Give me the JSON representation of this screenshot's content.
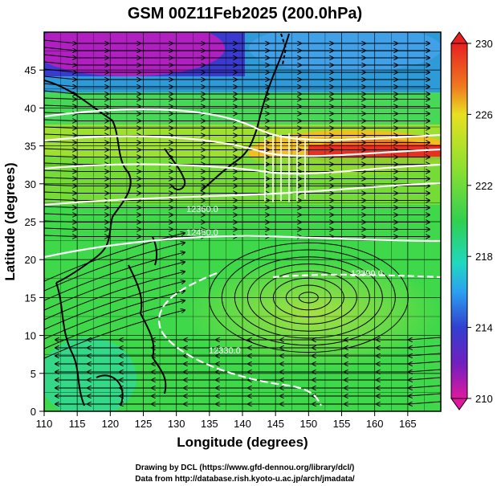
{
  "title": "GSM 00Z11Feb2025 (200.0hPa)",
  "x_axis": {
    "label": "Longitude (degrees)",
    "ticks": [
      "110",
      "115",
      "120",
      "125",
      "130",
      "135",
      "140",
      "145",
      "150",
      "155",
      "160",
      "165"
    ],
    "range": [
      110,
      170
    ]
  },
  "y_axis": {
    "label": "Latitude  (degrees)",
    "ticks": [
      "0",
      "5",
      "10",
      "15",
      "20",
      "25",
      "30",
      "35",
      "40",
      "45"
    ],
    "range": [
      0,
      50
    ]
  },
  "colorbar": {
    "labels": [
      "230",
      "226",
      "222",
      "218",
      "214",
      "210"
    ],
    "range": [
      210,
      230
    ],
    "colors": [
      "#e01890",
      "#3030d0",
      "#2aa0f0",
      "#20d8b0",
      "#48d848",
      "#8ee030",
      "#e8e020",
      "#f08020",
      "#e82020"
    ]
  },
  "contour_labels": [
    "12360.0",
    "12390.0",
    "12450.0",
    "12330.0"
  ],
  "footer": {
    "line1": "Drawing by DCL (https://www.gfd-dennou.org/library/dcl/)",
    "line2": "Data from http://database.rish.kyoto-u.ac.jp/arch/jmadata/"
  },
  "colors": {
    "background": "#ffffff",
    "contour": "#ffffff",
    "streamline": "#000000",
    "coastline": "#000000"
  }
}
